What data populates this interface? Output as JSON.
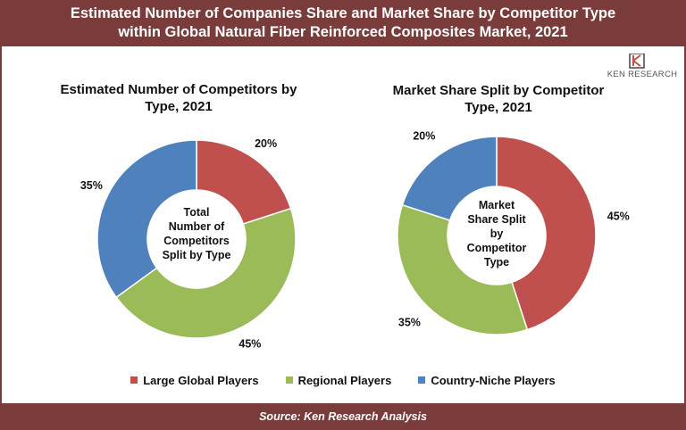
{
  "header": {
    "title_line1": "Estimated Number of Companies Share and Market Share by Competitor Type",
    "title_line2": "within Global Natural Fiber Reinforced Composites Market, 2021"
  },
  "logo": {
    "text": "KEN RESEARCH"
  },
  "footer": {
    "source": "Source: Ken Research Analysis"
  },
  "colors": {
    "brand": "#7a3b3b",
    "large_global": "#c0504d",
    "regional": "#9bbb59",
    "country_niche": "#4f81bd"
  },
  "legend": [
    {
      "label": "Large Global Players",
      "color": "#c0504d"
    },
    {
      "label": "Regional Players",
      "color": "#9bbb59"
    },
    {
      "label": "Country-Niche Players",
      "color": "#4f81bd"
    }
  ],
  "chart_data": [
    {
      "type": "pie",
      "subtype": "donut",
      "title_line1": "Estimated Number of Competitors by",
      "title_line2": "Type, 2021",
      "center_lines": [
        "Total",
        "Number of",
        "Competitors",
        "Split by Type"
      ],
      "categories": [
        "Large Global Players",
        "Regional Players",
        "Country-Niche Players"
      ],
      "values": [
        20,
        45,
        35
      ],
      "labels": [
        "20%",
        "45%",
        "35%"
      ],
      "colors": [
        "#c0504d",
        "#9bbb59",
        "#4f81bd"
      ],
      "legend_position": "bottom"
    },
    {
      "type": "pie",
      "subtype": "donut",
      "title_line1": "Market Share Split by Competitor",
      "title_line2": "Type, 2021",
      "center_lines": [
        "Market",
        "Share Split",
        "by",
        "Competitor",
        "Type"
      ],
      "categories": [
        "Large Global Players",
        "Regional Players",
        "Country-Niche Players"
      ],
      "values": [
        45,
        35,
        20
      ],
      "labels": [
        "45%",
        "35%",
        "20%"
      ],
      "colors": [
        "#c0504d",
        "#9bbb59",
        "#4f81bd"
      ],
      "legend_position": "bottom"
    }
  ]
}
